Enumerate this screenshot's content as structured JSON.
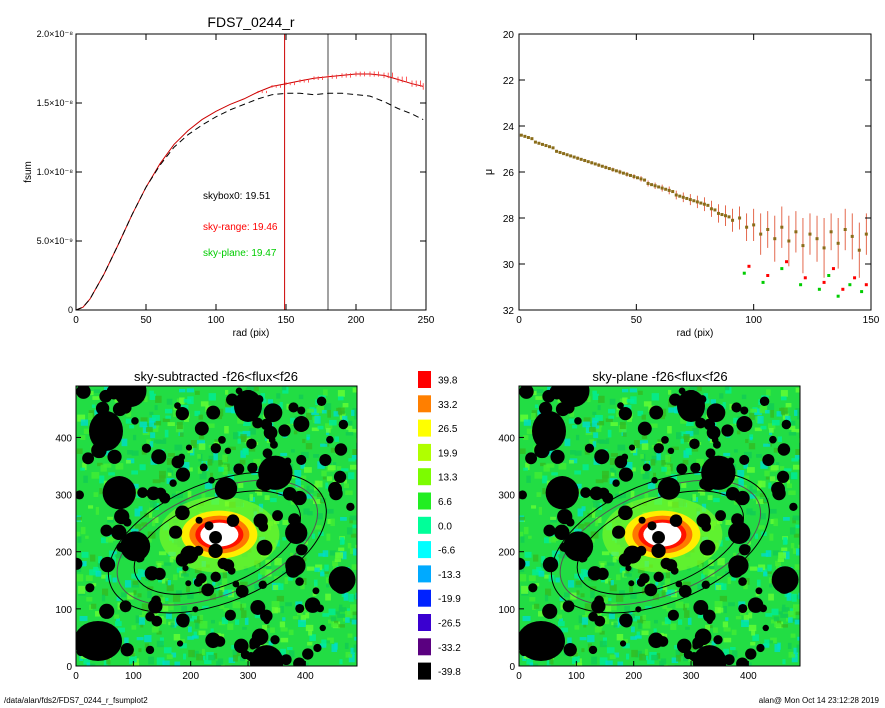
{
  "footer": {
    "path": "/data/alan/fds2/FDS7_0244_r_fsumplot2",
    "stamp": "alan@  Mon Oct 14 23:12:28 2019"
  },
  "chart_data": [
    {
      "type": "line",
      "title": "FDS7_0244_r",
      "xlabel": "rad (pix)",
      "ylabel": "fsum",
      "xlim": [
        0,
        250
      ],
      "ylim": [
        0,
        2e-08
      ],
      "xticks": [
        "0",
        "50",
        "100",
        "150",
        "200",
        "250"
      ],
      "yticks": [
        {
          "v": 0,
          "label": "0"
        },
        {
          "v": 5e-09,
          "label": "5.0×10⁻⁹"
        },
        {
          "v": 1e-08,
          "label": "1.0×10⁻⁸"
        },
        {
          "v": 1.5e-08,
          "label": "1.5×10⁻⁸"
        },
        {
          "v": 2e-08,
          "label": "2.0×10⁻⁸"
        }
      ],
      "annotations": [
        {
          "text": "skybox0: 19.51",
          "color": "#000000"
        },
        {
          "text": "sky-range: 19.46",
          "color": "#ff0000"
        },
        {
          "text": "sky-plane: 19.47",
          "color": "#00cc00"
        }
      ],
      "vlines": [
        {
          "x": 149,
          "color": "#cc0000"
        },
        {
          "x": 180,
          "color": "#444444"
        },
        {
          "x": 225,
          "color": "#444444"
        }
      ],
      "series": [
        {
          "style": "solid",
          "color": "#cc0000",
          "x": [
            0,
            5,
            10,
            20,
            30,
            40,
            50,
            60,
            70,
            80,
            90,
            100,
            110,
            120,
            130,
            140,
            150,
            160,
            170,
            180,
            190,
            200,
            210,
            220,
            230,
            240,
            248
          ],
          "y": [
            0,
            2e-10,
            8e-10,
            2.6e-09,
            4.7e-09,
            6.9e-09,
            8.9e-09,
            1.06e-08,
            1.2e-08,
            1.3e-08,
            1.38e-08,
            1.44e-08,
            1.49e-08,
            1.53e-08,
            1.58e-08,
            1.62e-08,
            1.64e-08,
            1.66e-08,
            1.68e-08,
            1.69e-08,
            1.7e-08,
            1.71e-08,
            1.71e-08,
            1.7e-08,
            1.67e-08,
            1.64e-08,
            1.62e-08
          ]
        },
        {
          "style": "dashed",
          "color": "#000000",
          "x": [
            0,
            5,
            10,
            20,
            30,
            40,
            50,
            60,
            70,
            80,
            90,
            100,
            110,
            120,
            130,
            140,
            150,
            160,
            170,
            180,
            190,
            200,
            210,
            220,
            230,
            240,
            248
          ],
          "y": [
            0,
            2e-10,
            8e-10,
            2.6e-09,
            4.7e-09,
            6.9e-09,
            8.9e-09,
            1.05e-08,
            1.18e-08,
            1.27e-08,
            1.34e-08,
            1.4e-08,
            1.45e-08,
            1.49e-08,
            1.53e-08,
            1.56e-08,
            1.57e-08,
            1.57e-08,
            1.56e-08,
            1.57e-08,
            1.57e-08,
            1.56e-08,
            1.55e-08,
            1.51e-08,
            1.46e-08,
            1.42e-08,
            1.38e-08
          ]
        }
      ]
    },
    {
      "type": "scatter",
      "xlabel": "rad (pix)",
      "ylabel": "μ",
      "xlim": [
        0,
        150
      ],
      "ylim": [
        32,
        20
      ],
      "xticks": [
        "0",
        "50",
        "100",
        "150"
      ],
      "yticks": [
        "20",
        "22",
        "24",
        "26",
        "28",
        "30",
        "32"
      ],
      "series": [
        {
          "color": "#cc5500",
          "x": [
            1,
            4,
            7,
            10,
            13,
            16,
            19,
            22,
            25,
            28,
            31,
            34,
            37,
            40,
            43,
            46,
            49,
            52,
            55,
            58,
            61,
            64,
            67,
            70,
            73,
            76,
            79,
            82,
            85,
            88,
            91,
            94,
            97,
            100,
            103,
            106,
            109,
            112,
            115,
            118,
            121,
            124,
            127,
            130,
            133,
            136,
            139,
            142,
            145,
            148
          ],
          "y": [
            24.4,
            24.5,
            24.7,
            24.8,
            24.9,
            25.1,
            25.2,
            25.3,
            25.4,
            25.5,
            25.6,
            25.7,
            25.8,
            25.9,
            26.0,
            26.1,
            26.2,
            26.3,
            26.5,
            26.6,
            26.7,
            26.8,
            27.0,
            27.1,
            27.2,
            27.3,
            27.4,
            27.6,
            27.8,
            27.9,
            28.1,
            28.0,
            28.4,
            28.3,
            28.7,
            28.5,
            28.9,
            28.4,
            29.0,
            28.6,
            29.2,
            28.7,
            28.9,
            29.3,
            28.6,
            29.1,
            28.5,
            28.8,
            29.4,
            28.7
          ],
          "err": [
            0.05,
            0.05,
            0.05,
            0.05,
            0.05,
            0.06,
            0.06,
            0.06,
            0.07,
            0.07,
            0.07,
            0.08,
            0.08,
            0.09,
            0.1,
            0.1,
            0.11,
            0.12,
            0.13,
            0.14,
            0.15,
            0.17,
            0.19,
            0.21,
            0.24,
            0.27,
            0.3,
            0.35,
            0.4,
            0.45,
            0.5,
            0.5,
            0.6,
            0.7,
            0.9,
            0.8,
            1.0,
            0.9,
            1.1,
            0.9,
            1.2,
            0.9,
            1.0,
            1.3,
            0.8,
            1.1,
            0.9,
            1.0,
            1.2,
            0.9
          ]
        },
        {
          "color": "#00cc00",
          "x": [
            96,
            104,
            112,
            120,
            128,
            132,
            136,
            141,
            146
          ],
          "y": [
            30.4,
            30.8,
            30.2,
            30.9,
            31.1,
            30.5,
            31.4,
            30.9,
            31.2
          ]
        }
      ]
    },
    {
      "type": "heatmap",
      "title": "sky-subtracted -f26<flux<f26",
      "xlim": [
        0,
        490
      ],
      "ylim": [
        0,
        490
      ],
      "xticks": [
        "0",
        "100",
        "200",
        "300",
        "400"
      ],
      "yticks": [
        "0",
        "100",
        "200",
        "300",
        "400"
      ]
    },
    {
      "type": "heatmap",
      "title": "sky-plane -f26<flux<f26",
      "xlim": [
        0,
        490
      ],
      "ylim": [
        0,
        490
      ],
      "xticks": [
        "0",
        "100",
        "200",
        "300",
        "400"
      ],
      "yticks": [
        "0",
        "100",
        "200",
        "300",
        "400"
      ]
    },
    {
      "type": "colorbar",
      "levels": [
        "39.8",
        "33.2",
        "26.5",
        "19.9",
        "13.3",
        "6.6",
        "0.0",
        "-6.6",
        "-13.3",
        "-19.9",
        "-26.5",
        "-33.2",
        "-39.8"
      ],
      "colors": [
        "#ff0000",
        "#ff7f00",
        "#ffff00",
        "#b0ff00",
        "#7cfc00",
        "#22ee22",
        "#00ff99",
        "#00ffff",
        "#00aaff",
        "#0022ff",
        "#3a00d0",
        "#5a0080",
        "#000000"
      ]
    }
  ]
}
